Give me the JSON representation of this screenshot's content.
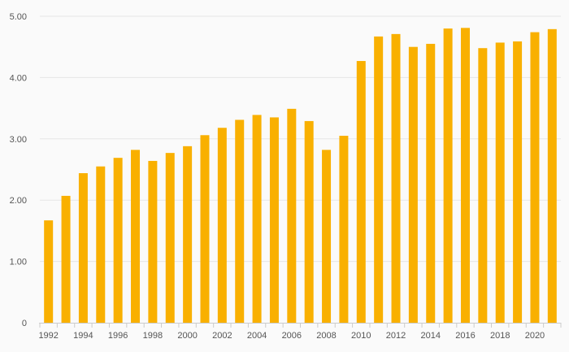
{
  "chart_data": {
    "type": "bar",
    "title": "",
    "xlabel": "",
    "ylabel": "",
    "categories": [
      "1992",
      "1993",
      "1994",
      "1995",
      "1996",
      "1997",
      "1998",
      "1999",
      "2000",
      "2001",
      "2002",
      "2003",
      "2004",
      "2005",
      "2006",
      "2007",
      "2008",
      "2009",
      "2010",
      "2011",
      "2012",
      "2013",
      "2014",
      "2015",
      "2016",
      "2017",
      "2018",
      "2019",
      "2020",
      "2021"
    ],
    "values": [
      1.67,
      2.07,
      2.44,
      2.55,
      2.69,
      2.82,
      2.64,
      2.77,
      2.88,
      3.06,
      3.18,
      3.31,
      3.39,
      3.35,
      3.49,
      3.29,
      2.82,
      3.05,
      4.27,
      4.67,
      4.71,
      4.5,
      4.55,
      4.8,
      4.81,
      4.48,
      4.57,
      4.59,
      4.74,
      4.79
    ],
    "ylim": [
      0,
      5
    ],
    "y_ticks": [
      {
        "value": 0,
        "label": "0"
      },
      {
        "value": 1,
        "label": "1.00"
      },
      {
        "value": 2,
        "label": "2.00"
      },
      {
        "value": 3,
        "label": "3.00"
      },
      {
        "value": 4,
        "label": "4.00"
      },
      {
        "value": 5,
        "label": "5.00"
      }
    ],
    "x_tick_labels": [
      "1992",
      "1994",
      "1996",
      "1998",
      "2000",
      "2002",
      "2004",
      "2006",
      "2008",
      "2010",
      "2012",
      "2014",
      "2016",
      "2018",
      "2020"
    ],
    "grid": true,
    "legend": "none",
    "bar_color": "#f9b000"
  }
}
